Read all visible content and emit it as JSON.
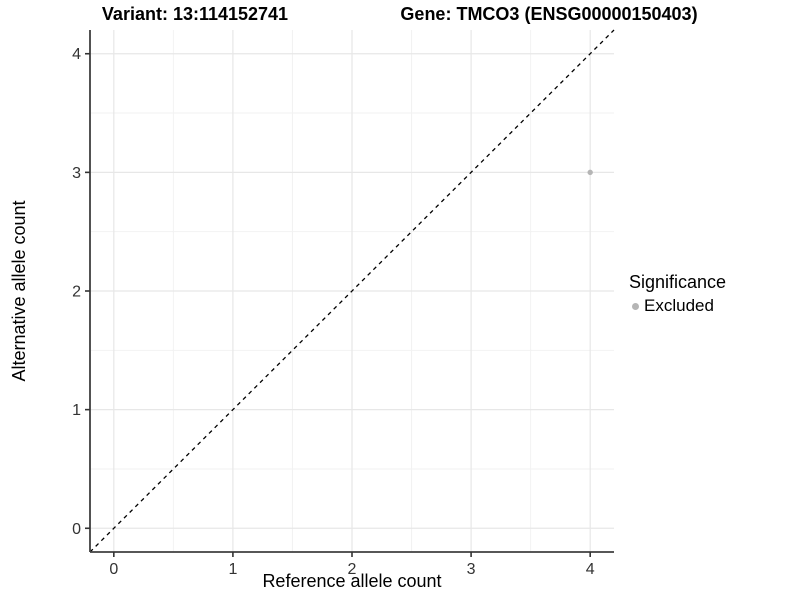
{
  "titles": {
    "variant": "Variant: 13:114152741",
    "gene": "Gene: TMCO3 (ENSG00000150403)"
  },
  "axes": {
    "x_label": "Reference allele count",
    "y_label": "Alternative allele count"
  },
  "legend": {
    "title": "Significance",
    "items": [
      {
        "label": "Excluded",
        "color": "#b5b5b5"
      }
    ],
    "position": "right"
  },
  "chart_data": {
    "type": "scatter",
    "title": "Variant: 13:114152741 | Gene: TMCO3 (ENSG00000150403)",
    "xlabel": "Reference allele count",
    "ylabel": "Alternative allele count",
    "xlim": [
      -0.2,
      4.2
    ],
    "ylim": [
      -0.2,
      4.2
    ],
    "x_ticks": [
      0,
      1,
      2,
      3,
      4
    ],
    "y_ticks": [
      0,
      1,
      2,
      3,
      4
    ],
    "x_minor_ticks": [
      0.5,
      1.5,
      2.5,
      3.5
    ],
    "y_minor_ticks": [
      0.5,
      1.5,
      2.5,
      3.5
    ],
    "grid": true,
    "legend_position": "right",
    "series": [
      {
        "name": "Excluded",
        "color": "#b5b5b5",
        "points": [
          {
            "x": 4,
            "y": 3
          }
        ]
      }
    ],
    "reference_line": {
      "type": "identity",
      "slope": 1,
      "intercept": 0,
      "style": "dashed",
      "color": "#000000"
    }
  },
  "colors": {
    "background": "#ffffff",
    "grid_major": "#e7e7e7",
    "grid_minor": "#f2f2f2",
    "axis_line": "#3f3f3f",
    "tick_mark": "#333333",
    "tick_text": "#333333",
    "dashed_line": "#000000",
    "point": "#b5b5b5"
  }
}
